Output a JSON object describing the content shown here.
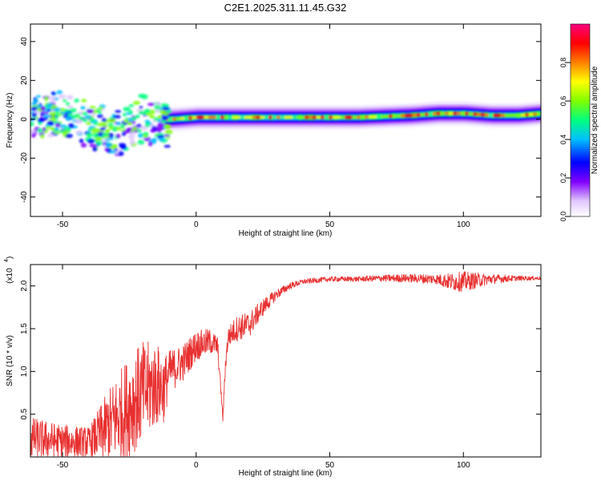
{
  "title": "C2E1.2025.311.11.45.G32",
  "chart_data": [
    {
      "type": "heatmap",
      "xlabel": "Height of straight line (km)",
      "ylabel": "Frequency (Hz)",
      "xlim": [
        -62,
        129
      ],
      "ylim": [
        -50,
        49
      ],
      "xticks": [
        -50,
        0,
        50,
        100
      ],
      "yticks": [
        -40,
        -20,
        0,
        20,
        40
      ],
      "colorbar": {
        "label": "Normalized spectral amplitude",
        "range": [
          0,
          1
        ],
        "ticks": [
          "0.0",
          "0.2",
          "0.4",
          "0.6",
          "0.8"
        ],
        "colormap": [
          "#ffffff",
          "#e0c8ff",
          "#8000ff",
          "#0000ff",
          "#00c0ff",
          "#00ff80",
          "#80ff00",
          "#ffff00",
          "#ff8000",
          "#ff0000",
          "#ff0080"
        ]
      },
      "band": {
        "x": [
          -62,
          -55,
          -50,
          -45,
          -40,
          -35,
          -30,
          -25,
          -20,
          -15,
          -12,
          -10,
          0,
          20,
          40,
          60,
          80,
          90,
          100,
          110,
          120,
          129
        ],
        "center_freq": [
          0,
          5,
          4,
          2,
          -1,
          -4,
          -6,
          -1,
          3,
          0,
          0,
          0,
          1,
          1,
          1,
          1,
          2,
          3,
          3,
          2,
          2,
          3
        ]
      }
    },
    {
      "type": "line",
      "xlabel": "Height of straight line (km)",
      "ylabel": "SNR (10 * v/v)",
      "scale_label": "(x10",
      "scale_exp": "4",
      "xlim": [
        -62,
        129
      ],
      "ylim": [
        0,
        2.25
      ],
      "xticks": [
        -50,
        0,
        50,
        100
      ],
      "yticks": [
        "0.5",
        "1.0",
        "1.5",
        "2.0"
      ],
      "color": "#e83030",
      "envelope_x": [
        -62,
        -50,
        -40,
        -35,
        -30,
        -25,
        -20,
        -15,
        -12,
        -10,
        -5,
        0,
        5,
        8,
        9,
        10,
        11,
        12,
        15,
        20,
        25,
        30,
        35,
        40,
        50,
        60,
        70,
        80,
        90,
        95,
        100,
        110,
        120,
        129
      ],
      "envelope_mean": [
        0.22,
        0.18,
        0.17,
        0.3,
        0.45,
        0.6,
        0.75,
        0.85,
        0.8,
        1.0,
        1.1,
        1.3,
        1.35,
        1.3,
        0.9,
        0.45,
        1.1,
        1.4,
        1.5,
        1.55,
        1.75,
        1.9,
        2.0,
        2.05,
        2.08,
        2.08,
        2.09,
        2.09,
        2.08,
        2.05,
        2.05,
        2.08,
        2.09,
        2.09
      ],
      "envelope_noise": [
        0.25,
        0.2,
        0.18,
        0.35,
        0.5,
        0.6,
        0.6,
        0.5,
        0.4,
        0.25,
        0.22,
        0.18,
        0.15,
        0.12,
        0.05,
        0.05,
        0.1,
        0.12,
        0.15,
        0.15,
        0.1,
        0.06,
        0.04,
        0.03,
        0.03,
        0.03,
        0.04,
        0.05,
        0.06,
        0.1,
        0.12,
        0.06,
        0.03,
        0.02
      ]
    }
  ]
}
